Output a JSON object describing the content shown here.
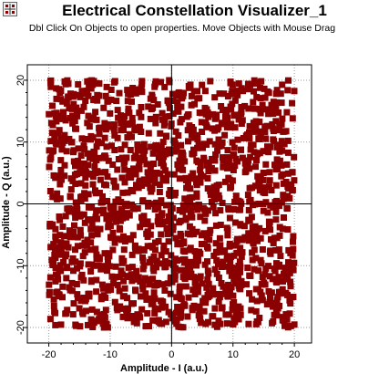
{
  "window": {
    "title": "Electrical Constellation Visualizer_1",
    "hint": "Dbl Click On Objects to open properties.  Move Objects with Mouse Drag"
  },
  "icons": {
    "app": "constellation-app-icon"
  },
  "colors": {
    "marker": "#8b0000",
    "frame": "#000000",
    "grid": "#9a9a9a",
    "background": "#ffffff"
  },
  "chart_data": {
    "type": "scatter",
    "title": "",
    "xlabel": "Amplitude - I (a.u.)",
    "ylabel": "Amplitude - Q (a.u.)",
    "xlim": [
      -23.5,
      22.8
    ],
    "ylim": [
      -22.5,
      22.5
    ],
    "x_ticks": [
      -20,
      -10,
      0,
      10,
      20
    ],
    "y_ticks": [
      -20,
      -10,
      0,
      10,
      20
    ],
    "grid": true,
    "legend": "none",
    "marker": "square",
    "generator": {
      "count": 1700,
      "seed": 7,
      "x_range": [
        -20,
        20
      ],
      "y_range": [
        -20,
        20
      ]
    },
    "points": []
  }
}
